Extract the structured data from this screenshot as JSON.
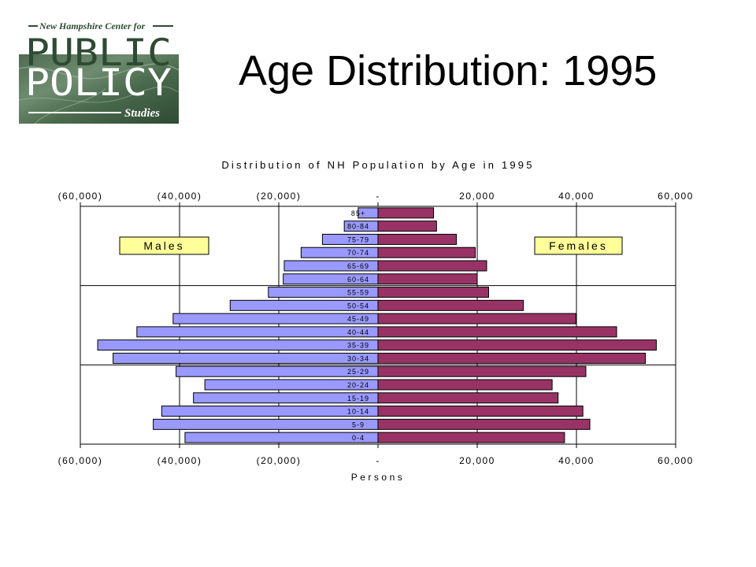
{
  "slide": {
    "title": "Age Distribution: 1995"
  },
  "logo": {
    "line1": "New Hampshire Center for",
    "line2": "PUBLIC",
    "line3": "POLICY",
    "line4": "Studies"
  },
  "chart_data": {
    "type": "bar",
    "orientation": "horizontal",
    "subtype": "population-pyramid",
    "title": "Distribution of NH Population by Age in 1995",
    "xlabel": "Persons",
    "ylabel": "",
    "xlim": [
      -60000,
      60000
    ],
    "x_ticks": [
      -60000,
      -40000,
      -20000,
      0,
      20000,
      40000,
      60000
    ],
    "x_tick_labels": [
      "(60,000)",
      "(40,000)",
      "(20,000)",
      "-",
      "20,000",
      "40,000",
      "60,000"
    ],
    "categories": [
      "0-4",
      "5-9",
      "10-14",
      "15-19",
      "20-24",
      "25-29",
      "30-34",
      "35-39",
      "40-44",
      "45-49",
      "50-54",
      "55-59",
      "60-64",
      "65-69",
      "70-74",
      "75-79",
      "80-84",
      "85+"
    ],
    "series": [
      {
        "name": "Males",
        "color": "#9999ff",
        "values": [
          -38900,
          -45300,
          -43600,
          -37200,
          -34900,
          -40700,
          -53400,
          -56500,
          -48600,
          -41300,
          -29800,
          -22100,
          -19100,
          -18900,
          -15500,
          -11200,
          -6800,
          -4000
        ]
      },
      {
        "name": "Females",
        "color": "#993366",
        "values": [
          37600,
          42700,
          41300,
          36300,
          35100,
          41900,
          53900,
          56100,
          48100,
          39900,
          29300,
          22300,
          20000,
          21900,
          19600,
          15800,
          11800,
          11200
        ]
      }
    ],
    "legend_boxes": [
      "Males",
      "Females"
    ],
    "grid": "vertical major gridlines plus two horizontal lines",
    "legend_fill": "#ffff99"
  }
}
